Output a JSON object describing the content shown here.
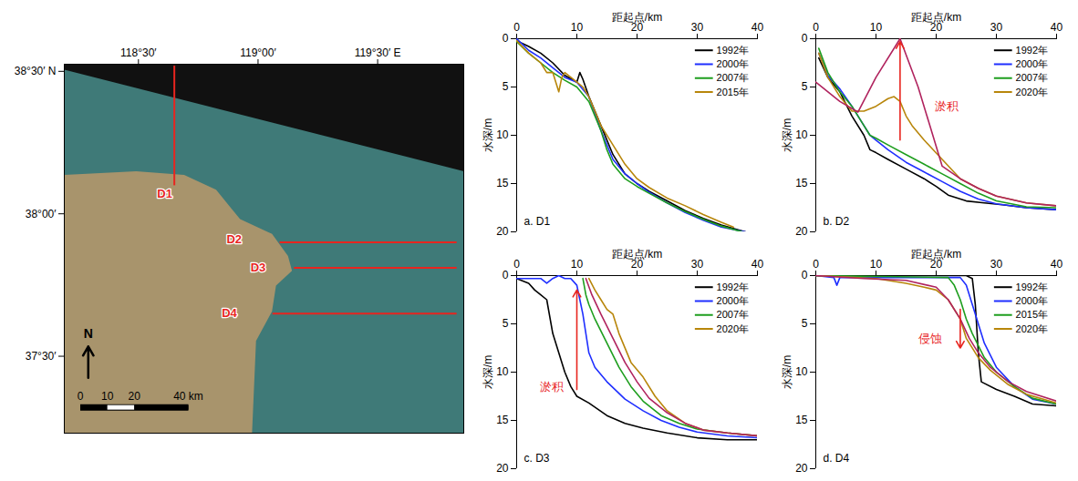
{
  "chart_data": [
    {
      "type": "map",
      "xlim": [
        118.19,
        119.86
      ],
      "ylim": [
        37.23,
        38.525
      ],
      "xticks": [
        {
          "value": 118.5,
          "label": "118°30′"
        },
        {
          "value": 119,
          "label": "119°00′"
        },
        {
          "value": 119.5,
          "label": "119°30′ E"
        }
      ],
      "yticks": [
        {
          "value": 38.5,
          "label": "38°30′ N"
        },
        {
          "value": 38,
          "label": "38°00′"
        },
        {
          "value": 37.5,
          "label": "37°30′"
        }
      ],
      "stations": [
        {
          "name": "D1",
          "lon": 118.61,
          "lat": 38.07
        },
        {
          "name": "D2",
          "lon": 118.9,
          "lat": 37.91
        },
        {
          "name": "D3",
          "lon": 119.0,
          "lat": 37.81
        },
        {
          "name": "D4",
          "lon": 118.88,
          "lat": 37.65
        }
      ],
      "transects": [
        {
          "name": "D1",
          "x1": 118.65,
          "y1": 38.1,
          "x2": 118.65,
          "y2": 38.52
        },
        {
          "name": "D2",
          "x1": 119.09,
          "y1": 37.9,
          "x2": 119.83,
          "y2": 37.9
        },
        {
          "name": "D3",
          "x1": 119.15,
          "y1": 37.81,
          "x2": 119.83,
          "y2": 37.81
        },
        {
          "name": "D4",
          "x1": 119.06,
          "y1": 37.65,
          "x2": 119.83,
          "y2": 37.65
        }
      ],
      "color": "#e8251f",
      "north_label": "N",
      "scalebar": [
        {
          "value": 0,
          "label": "0"
        },
        {
          "value": 10,
          "label": "10"
        },
        {
          "value": 20,
          "label": "20"
        },
        {
          "value": 40,
          "label": "40 km"
        }
      ]
    },
    {
      "type": "line",
      "title": "a. D1",
      "xlabel": "距起点/km",
      "ylabel": "水深/m",
      "xlim": [
        0,
        40
      ],
      "ylim": [
        0,
        20
      ],
      "xticks": [
        0,
        10,
        20,
        30,
        40
      ],
      "yticks": [
        0,
        5,
        10,
        15,
        20
      ],
      "legend": "top-right",
      "series": [
        {
          "name": "1992年",
          "color": "#000000",
          "x": [
            0,
            2,
            4,
            6,
            8,
            10,
            10.5,
            11,
            12,
            14,
            16,
            18,
            20,
            22,
            25,
            28,
            31,
            34,
            38
          ],
          "values": [
            0.2,
            0.8,
            1.5,
            2.5,
            3.8,
            4.5,
            3.5,
            4.2,
            6,
            9,
            12,
            14,
            15,
            15.8,
            16.8,
            17.8,
            18.6,
            19.3,
            20
          ]
        },
        {
          "name": "2000年",
          "color": "#1f2fff",
          "x": [
            0,
            2,
            4,
            6,
            8,
            10,
            12,
            14,
            16,
            18,
            20,
            22,
            25,
            28,
            31,
            34,
            38
          ],
          "values": [
            0,
            1.2,
            2,
            3,
            4,
            4.5,
            6,
            9.5,
            12.5,
            14,
            15,
            15.9,
            17,
            18,
            18.8,
            19.5,
            20
          ]
        },
        {
          "name": "2007年",
          "color": "#1e9e1e",
          "x": [
            0,
            2,
            4,
            6,
            8,
            10,
            12,
            14,
            15,
            16,
            18,
            20,
            22,
            25,
            28,
            31,
            34,
            37.5
          ],
          "values": [
            0.3,
            1.5,
            2.5,
            3.5,
            4.3,
            5,
            6.5,
            9.5,
            11.5,
            13,
            14.5,
            15.3,
            16,
            17,
            17.9,
            18.7,
            19.4,
            20
          ]
        },
        {
          "name": "2015年",
          "color": "#b8860b",
          "x": [
            0,
            2,
            4,
            5,
            6,
            7,
            7.5,
            8,
            9,
            10,
            11,
            12,
            13,
            14,
            16,
            18,
            20,
            22,
            25,
            28,
            31,
            34,
            36
          ],
          "values": [
            0.2,
            1.5,
            2.5,
            3.5,
            3.5,
            5.5,
            4,
            3.5,
            4,
            4.5,
            5,
            6,
            7.5,
            9,
            11,
            13,
            14.5,
            15.4,
            16.5,
            17.3,
            18.2,
            19,
            19.5
          ]
        }
      ],
      "annotations": []
    },
    {
      "type": "line",
      "title": "b. D2",
      "xlabel": "距起点/km",
      "ylabel": "水深/m",
      "xlim": [
        0,
        40
      ],
      "ylim": [
        0,
        20
      ],
      "xticks": [
        0,
        10,
        20,
        30,
        40
      ],
      "yticks": [
        0,
        5,
        10,
        15,
        20
      ],
      "legend": "top-right",
      "series": [
        {
          "name": "1992年",
          "color": "#000000",
          "x": [
            0.5,
            2,
            4,
            6,
            8,
            9,
            10,
            12,
            15,
            18,
            20,
            22,
            25,
            28,
            31,
            35,
            40
          ],
          "values": [
            2,
            4,
            5.5,
            8,
            10,
            11.5,
            11.8,
            12.5,
            13.5,
            14.5,
            15.3,
            16.2,
            16.8,
            17,
            17.2,
            17.5,
            17.7
          ]
        },
        {
          "name": "2000年",
          "color": "#1f2fff",
          "x": [
            0.5,
            2,
            4,
            6,
            8,
            9,
            10,
            12,
            15,
            18,
            21,
            24,
            27,
            30,
            35,
            40
          ],
          "values": [
            1.5,
            3.8,
            5.2,
            7,
            9,
            10,
            10.5,
            11.5,
            12.8,
            13.8,
            14.8,
            15.8,
            16.6,
            17.1,
            17.5,
            17.7
          ]
        },
        {
          "name": "2007年",
          "color": "#1e9e1e",
          "x": [
            0.5,
            2,
            4,
            6,
            8,
            9,
            10,
            12,
            15,
            18,
            21,
            24,
            27,
            30,
            35,
            40
          ],
          "values": [
            1,
            3.5,
            5.5,
            7,
            9,
            10,
            10.3,
            11,
            12,
            13,
            14,
            15,
            16,
            16.8,
            17.4,
            17.5
          ]
        },
        {
          "name": "2020年",
          "color": "#b8860b",
          "x": [
            0.5,
            2,
            4,
            6,
            8,
            10,
            12,
            13,
            14,
            15,
            16,
            18,
            21,
            24,
            27,
            30,
            35,
            40
          ],
          "values": [
            1.5,
            4,
            6,
            7.5,
            7.5,
            7,
            6.2,
            6,
            6.5,
            8,
            9,
            10.5,
            12.5,
            14.5,
            15.5,
            16.3,
            17,
            17.3
          ]
        },
        {
          "name": null,
          "color": "#b0235e",
          "x": [
            0,
            4,
            7,
            10,
            14,
            17,
            21,
            24,
            27,
            30,
            35,
            40
          ],
          "values": [
            4.5,
            6.5,
            7.6,
            4,
            0,
            5,
            13.2,
            14.5,
            15.5,
            16.3,
            17,
            17.3
          ]
        }
      ],
      "annotations": [
        {
          "text": "淤积",
          "x": 21.8,
          "y": 7,
          "color": "#e8251f",
          "arrow": {
            "x1": 14,
            "y1": 10.5,
            "x2": 14,
            "y2": 0.3
          }
        }
      ]
    },
    {
      "type": "line",
      "title": "c. D3",
      "xlabel": "距起点/km",
      "ylabel": "水深/m",
      "xlim": [
        0,
        40
      ],
      "ylim": [
        0,
        20
      ],
      "xticks": [
        0,
        10,
        20,
        30,
        40
      ],
      "yticks": [
        0,
        5,
        10,
        15,
        20
      ],
      "legend": "top-right",
      "series": [
        {
          "name": "1992年",
          "color": "#000000",
          "x": [
            0,
            2,
            3,
            4,
            5,
            6,
            7,
            8,
            9,
            10,
            12,
            15,
            18,
            21,
            25,
            30,
            35,
            40
          ],
          "values": [
            0.3,
            0.8,
            1.5,
            2,
            2.5,
            6,
            8,
            10,
            11.5,
            12.5,
            13.2,
            14.5,
            15.3,
            15.8,
            16.3,
            16.8,
            17,
            17
          ]
        },
        {
          "name": "2000年",
          "color": "#1f2fff",
          "x": [
            0,
            4,
            5,
            6,
            7,
            8,
            9,
            10,
            10.5,
            11,
            12,
            13,
            15,
            18,
            21,
            24,
            27,
            30,
            35,
            40
          ],
          "values": [
            0.3,
            0.3,
            0.8,
            0.3,
            0,
            0.3,
            0.3,
            1,
            2.5,
            4,
            8,
            9.5,
            11,
            12.8,
            14,
            15,
            15.7,
            16.2,
            16.6,
            16.8
          ]
        },
        {
          "name": "2007年",
          "color": "#1e9e1e",
          "x": [
            11,
            11.5,
            12,
            13,
            15,
            17,
            19,
            21,
            24,
            27,
            30,
            35,
            40
          ],
          "values": [
            0.3,
            2,
            3,
            4.5,
            7,
            9.5,
            11.5,
            13,
            14.5,
            15.3,
            15.9,
            16.3,
            16.6
          ]
        },
        {
          "name": "2020年",
          "color": "#b8860b",
          "x": [
            12,
            13,
            14,
            15,
            16,
            17,
            19,
            21,
            23,
            25,
            28,
            31,
            35,
            40
          ],
          "values": [
            0.3,
            1.5,
            2.5,
            3.5,
            4,
            6,
            9,
            10.5,
            12.5,
            14,
            15.3,
            16,
            16.3,
            16.6
          ]
        },
        {
          "name": null,
          "color": "#b0235e",
          "x": [
            11.5,
            12.5,
            14,
            16,
            18,
            20,
            22,
            25,
            28,
            31,
            35,
            40
          ],
          "values": [
            0.3,
            2,
            4,
            6.5,
            9,
            11,
            12.7,
            14.2,
            15.3,
            16,
            16.3,
            16.6
          ]
        }
      ],
      "annotations": [
        {
          "text": "淤积",
          "x": 5.8,
          "y": 11.5,
          "color": "#e8251f",
          "arrow": {
            "x1": 10,
            "y1": 11.8,
            "x2": 10,
            "y2": 1.5
          }
        }
      ]
    },
    {
      "type": "line",
      "title": "d. D4",
      "xlabel": "距起点/km",
      "ylabel": "水深/m",
      "xlim": [
        0,
        40
      ],
      "ylim": [
        0,
        20
      ],
      "xticks": [
        0,
        10,
        20,
        30,
        40
      ],
      "yticks": [
        0,
        5,
        10,
        15,
        20
      ],
      "legend": "top-right",
      "series": [
        {
          "name": "1992年",
          "color": "#000000",
          "x": [
            0,
            20,
            25,
            26,
            26.5,
            27,
            27.5,
            30,
            33,
            36,
            40
          ],
          "values": [
            0,
            0,
            0,
            0.3,
            3,
            8,
            11,
            11.8,
            12.5,
            13.3,
            13.5
          ]
        },
        {
          "name": "2000年",
          "color": "#1f2fff",
          "x": [
            0,
            3,
            3.5,
            4,
            24,
            25,
            26,
            27,
            28,
            30,
            33,
            36,
            40
          ],
          "values": [
            0,
            0.2,
            1,
            0.2,
            0.2,
            1,
            3,
            5,
            7,
            9.5,
            11.5,
            12.8,
            13.3
          ]
        },
        {
          "name": "2015年",
          "color": "#1e9e1e",
          "x": [
            0,
            22,
            23,
            24,
            25,
            26,
            28,
            30,
            33,
            36,
            40
          ],
          "values": [
            0,
            0.2,
            1,
            2.5,
            4.5,
            6,
            8.5,
            10,
            11.5,
            12.7,
            13.3
          ]
        },
        {
          "name": "2020年",
          "color": "#b8860b",
          "x": [
            0,
            10,
            15,
            18,
            20,
            22,
            24,
            25,
            27,
            29,
            32,
            35,
            40
          ],
          "values": [
            0,
            0.3,
            0.8,
            1.2,
            1.5,
            2.5,
            4.5,
            6.5,
            8.5,
            9.8,
            11.3,
            12.3,
            13.2
          ]
        },
        {
          "name": null,
          "color": "#b0235e",
          "x": [
            0,
            8,
            15,
            20,
            22,
            24,
            25.5,
            27,
            29,
            32,
            35,
            40
          ],
          "values": [
            0,
            0.3,
            0.5,
            1.2,
            2.5,
            4.5,
            6.5,
            8,
            9.5,
            11,
            12,
            13
          ]
        }
      ],
      "annotations": [
        {
          "text": "侵蚀",
          "x": 19,
          "y": 6.5,
          "color": "#e8251f",
          "arrow": {
            "x1": 24,
            "y1": 3.5,
            "x2": 24,
            "y2": 7.5
          }
        }
      ]
    }
  ]
}
